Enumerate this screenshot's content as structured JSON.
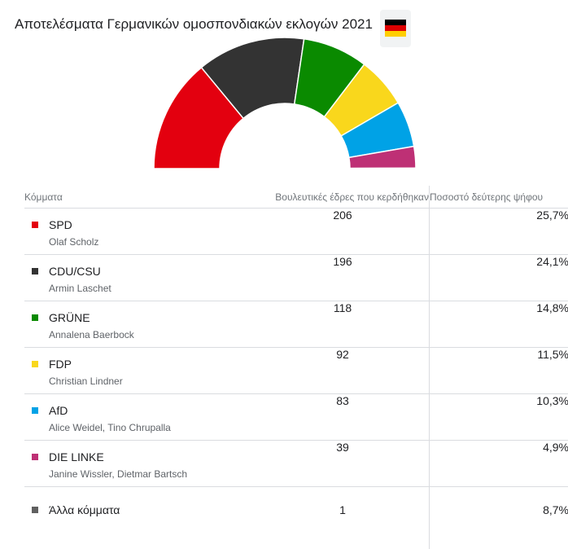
{
  "title": "Αποτελέσματα Γερμανικών ομοσπονδιακών εκλογών 2021",
  "flag": {
    "icon": "germany-flag-icon",
    "colors": [
      "#000000",
      "#dd0000",
      "#ffce00"
    ]
  },
  "table": {
    "headers": {
      "party": "Κόμματα",
      "seats": "Βουλευτικές έδρες που κερδήθηκαν",
      "percent": "Ποσοστό δεύτερης ψήφου"
    },
    "rows": [
      {
        "party": "SPD",
        "leader": "Olaf Scholz",
        "seats": "206",
        "percent": "25,7%",
        "color": "#e3000f"
      },
      {
        "party": "CDU/CSU",
        "leader": "Armin Laschet",
        "seats": "196",
        "percent": "24,1%",
        "color": "#333333"
      },
      {
        "party": "GRÜNE",
        "leader": "Annalena Baerbock",
        "seats": "118",
        "percent": "14,8%",
        "color": "#0a8a00"
      },
      {
        "party": "FDP",
        "leader": "Christian Lindner",
        "seats": "92",
        "percent": "11,5%",
        "color": "#f9d71c"
      },
      {
        "party": "AfD",
        "leader": "Alice Weidel, Tino Chrupalla",
        "seats": "83",
        "percent": "10,3%",
        "color": "#00a2e6"
      },
      {
        "party": "DIE LINKE",
        "leader": "Janine Wissler, Dietmar Bartsch",
        "seats": "39",
        "percent": "4,9%",
        "color": "#be3075"
      },
      {
        "party": "Άλλα κόμματα",
        "leader": "",
        "seats": "1",
        "percent": "8,7%",
        "color": "#606060"
      }
    ]
  },
  "chart_data": {
    "type": "pie",
    "subtype": "parliament-semicircle",
    "categories": [
      "SPD",
      "CDU/CSU",
      "GRÜNE",
      "FDP",
      "AfD",
      "DIE LINKE",
      "Άλλα κόμματα"
    ],
    "values": [
      206,
      196,
      118,
      92,
      83,
      39,
      1
    ],
    "colors": [
      "#e3000f",
      "#333333",
      "#0a8a00",
      "#f9d71c",
      "#00a2e6",
      "#be3075",
      "#606060"
    ],
    "title": "Αποτελέσματα Γερμανικών ομοσπονδιακών εκλογών 2021"
  }
}
